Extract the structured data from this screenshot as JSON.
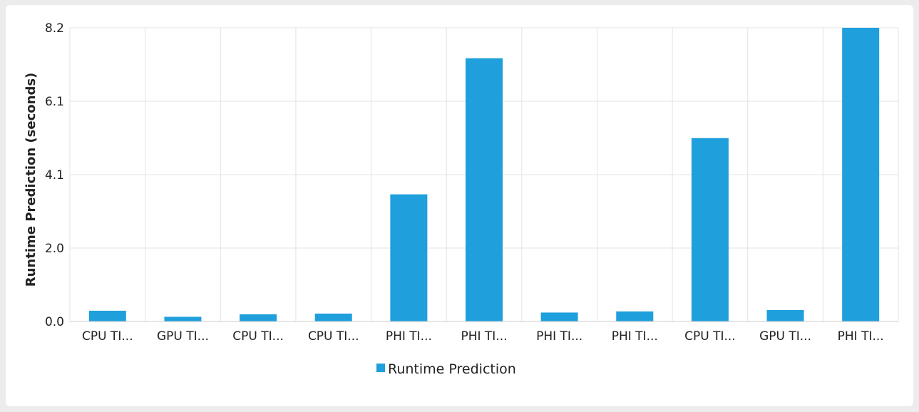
{
  "chart_data": {
    "type": "bar",
    "title": "",
    "xlabel": "",
    "ylabel": "Runtime Prediction (seconds)",
    "ylim": [
      0,
      8.2
    ],
    "yticks": [
      {
        "value": 0,
        "label": "0.0"
      },
      {
        "value": 2.05,
        "label": "2.0"
      },
      {
        "value": 4.1,
        "label": "4.1"
      },
      {
        "value": 6.15,
        "label": "6.1"
      },
      {
        "value": 8.2,
        "label": "8.2"
      }
    ],
    "categories": [
      "CPU TI...",
      "GPU TI...",
      "CPU TI...",
      "CPU TI...",
      "PHI TI...",
      "PHI TI...",
      "PHI TI...",
      "PHI TI...",
      "CPU TI...",
      "GPU TI...",
      "PHI TI..."
    ],
    "series": [
      {
        "name": "Runtime Prediction",
        "color": "#1f9fdc",
        "values": [
          0.3,
          0.13,
          0.2,
          0.22,
          3.55,
          7.35,
          0.25,
          0.28,
          5.12,
          0.32,
          8.2
        ]
      }
    ],
    "grid": true,
    "legend_position": "bottom"
  }
}
